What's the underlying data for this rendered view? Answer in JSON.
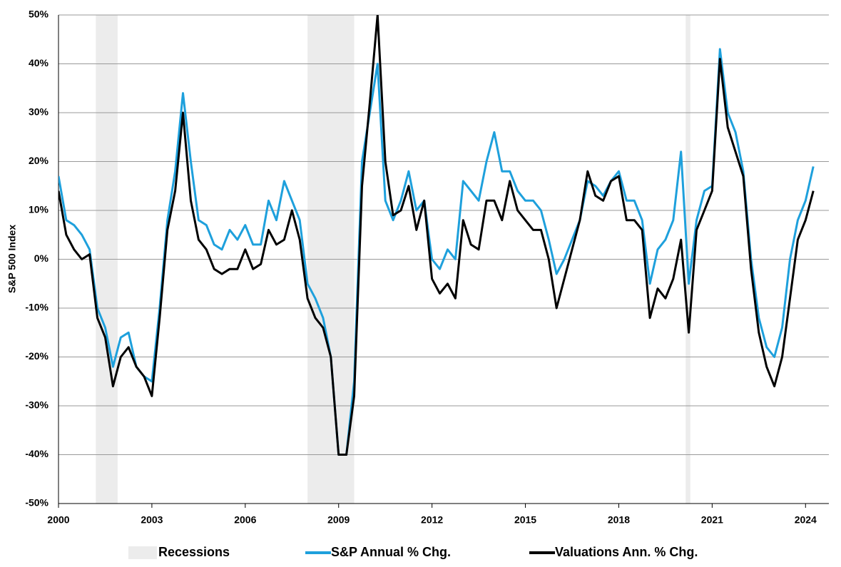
{
  "chart_data": {
    "type": "line",
    "ylabel": "S&P 500 Index",
    "x": [
      2000,
      2000.25,
      2000.5,
      2000.75,
      2001,
      2001.25,
      2001.5,
      2001.75,
      2002,
      2002.25,
      2002.5,
      2002.75,
      2003,
      2003.25,
      2003.5,
      2003.75,
      2004,
      2004.25,
      2004.5,
      2004.75,
      2005,
      2005.25,
      2005.5,
      2005.75,
      2006,
      2006.25,
      2006.5,
      2006.75,
      2007,
      2007.25,
      2007.5,
      2007.75,
      2008,
      2008.25,
      2008.5,
      2008.75,
      2009,
      2009.25,
      2009.5,
      2009.75,
      2010,
      2010.25,
      2010.5,
      2010.75,
      2011,
      2011.25,
      2011.5,
      2011.75,
      2012,
      2012.25,
      2012.5,
      2012.75,
      2013,
      2013.25,
      2013.5,
      2013.75,
      2014,
      2014.25,
      2014.5,
      2014.75,
      2015,
      2015.25,
      2015.5,
      2015.75,
      2016,
      2016.25,
      2016.5,
      2016.75,
      2017,
      2017.25,
      2017.5,
      2017.75,
      2018,
      2018.25,
      2018.5,
      2018.75,
      2019,
      2019.25,
      2019.5,
      2019.75,
      2020,
      2020.25,
      2020.5,
      2020.75,
      2021,
      2021.25,
      2021.5,
      2021.75,
      2022,
      2022.25,
      2022.5,
      2022.75,
      2023,
      2023.25,
      2023.5,
      2023.75,
      2024,
      2024.25
    ],
    "series": [
      {
        "name": "S&P Annual % Chg.",
        "color": "#1ea0dc",
        "values": [
          17,
          8,
          7,
          5,
          2,
          -10,
          -14,
          -22,
          -16,
          -15,
          -22,
          -24,
          -25,
          -10,
          8,
          18,
          34,
          20,
          8,
          7,
          3,
          2,
          6,
          4,
          7,
          3,
          3,
          12,
          8,
          16,
          12,
          8,
          -5,
          -8,
          -12,
          -20,
          -40,
          -40,
          -25,
          20,
          30,
          40,
          12,
          8,
          12,
          18,
          10,
          12,
          0,
          -2,
          2,
          0,
          16,
          14,
          12,
          20,
          26,
          18,
          18,
          14,
          12,
          12,
          10,
          4,
          -3,
          0,
          4,
          8,
          16,
          15,
          13,
          16,
          18,
          12,
          12,
          8,
          -5,
          2,
          4,
          8,
          22,
          -5,
          8,
          14,
          15,
          43,
          30,
          26,
          18,
          0,
          -12,
          -18,
          -20,
          -14,
          0,
          8,
          12,
          19
        ]
      },
      {
        "name": "Valuations Ann. % Chg.",
        "color": "#000000",
        "values": [
          14,
          5,
          2,
          0,
          1,
          -12,
          -16,
          -26,
          -20,
          -18,
          -22,
          -24,
          -28,
          -12,
          6,
          14,
          30,
          12,
          4,
          2,
          -2,
          -3,
          -2,
          -2,
          2,
          -2,
          -1,
          6,
          3,
          4,
          10,
          4,
          -8,
          -12,
          -14,
          -20,
          -40,
          -40,
          -28,
          15,
          32,
          50,
          20,
          9,
          10,
          15,
          6,
          12,
          -4,
          -7,
          -5,
          -8,
          8,
          3,
          2,
          12,
          12,
          8,
          16,
          10,
          8,
          6,
          6,
          0,
          -10,
          -4,
          2,
          8,
          18,
          13,
          12,
          16,
          17,
          8,
          8,
          6,
          -12,
          -6,
          -8,
          -4,
          4,
          -15,
          6,
          10,
          14,
          41,
          27,
          22,
          17,
          -2,
          -15,
          -22,
          -26,
          -20,
          -8,
          4,
          8,
          14
        ]
      }
    ],
    "recessions": {
      "name": "Recessions",
      "color": "#ececec",
      "spans": [
        [
          2001.2,
          2001.9
        ],
        [
          2008,
          2009.5
        ],
        [
          2020.15,
          2020.3
        ]
      ]
    },
    "xlim": [
      2000,
      2024.75
    ],
    "xticks": [
      2000,
      2003,
      2006,
      2009,
      2012,
      2015,
      2018,
      2021,
      2024
    ],
    "ylim": [
      -50,
      50
    ],
    "yticks": [
      {
        "value": -50,
        "label": "-50%"
      },
      {
        "value": -40,
        "label": "-40%"
      },
      {
        "value": -30,
        "label": "-30%"
      },
      {
        "value": -20,
        "label": "-20%"
      },
      {
        "value": -10,
        "label": "-10%"
      },
      {
        "value": 0,
        "label": "0%"
      },
      {
        "value": 10,
        "label": "10%"
      },
      {
        "value": 20,
        "label": "20%"
      },
      {
        "value": 30,
        "label": "30%"
      },
      {
        "value": 40,
        "label": "40%"
      },
      {
        "value": 50,
        "label": "50%"
      }
    ],
    "grid": true,
    "legend": "bottom"
  }
}
